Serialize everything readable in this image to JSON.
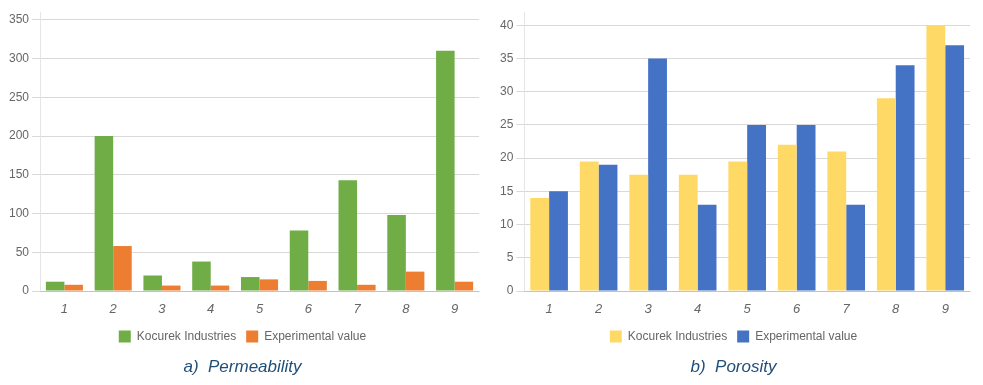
{
  "chart_data": [
    {
      "type": "bar",
      "title": "a)  Permeability",
      "categories": [
        1,
        2,
        3,
        4,
        5,
        6,
        7,
        8,
        9
      ],
      "series": [
        {
          "name": "Kocurek Industries",
          "color": "#70ad47",
          "values": [
            12,
            200,
            20,
            38,
            18,
            78,
            143,
            98,
            310
          ]
        },
        {
          "name": "Experimental value",
          "color": "#ed7d31",
          "values": [
            8,
            58,
            7,
            7,
            15,
            13,
            8,
            25,
            12
          ]
        }
      ],
      "ylim": [
        0,
        360
      ],
      "yticks": [
        0,
        50,
        100,
        150,
        200,
        250,
        300,
        350
      ],
      "grid": true,
      "legend": "bottom"
    },
    {
      "type": "bar",
      "title": "b)  Porosity",
      "categories": [
        1,
        2,
        3,
        4,
        5,
        6,
        7,
        8,
        9
      ],
      "series": [
        {
          "name": "Kocurek Industries",
          "color": "#ffd966",
          "values": [
            14,
            19.5,
            17.5,
            17.5,
            19.5,
            22,
            21,
            29,
            40
          ]
        },
        {
          "name": "Experimental value",
          "color": "#4472c4",
          "values": [
            15,
            19,
            35,
            13,
            25,
            25,
            13,
            34,
            37
          ]
        }
      ],
      "ylim": [
        0,
        42
      ],
      "yticks": [
        0,
        5,
        10,
        15,
        20,
        25,
        30,
        35,
        40
      ],
      "grid": true,
      "legend": "bottom"
    }
  ]
}
